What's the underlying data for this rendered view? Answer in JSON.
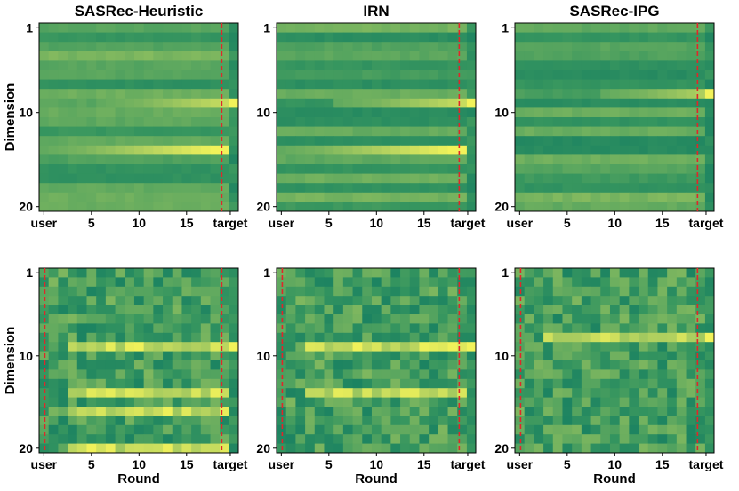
{
  "chart_data": {
    "type": "heatmap",
    "layout": "2 rows x 3 columns",
    "colormap": "summer (dark green to yellow)",
    "colors": {
      "low": "#0f7a62",
      "mid": "#4fa060",
      "high": "#f2f25a",
      "marker_line": "#e0262a"
    },
    "ylabel": "Dimension",
    "xlabel": "Round",
    "y_ticks": [
      {
        "value": 1,
        "label": "1"
      },
      {
        "value": 10,
        "label": "10"
      },
      {
        "value": 20,
        "label": "20"
      }
    ],
    "x_ticks": [
      {
        "value": 0,
        "label": "user"
      },
      {
        "value": 5,
        "label": "5"
      },
      {
        "value": 10,
        "label": "10"
      },
      {
        "value": 15,
        "label": "15"
      },
      {
        "value": 19,
        "label": "target"
      }
    ],
    "marker_lines_note": "dashed red vertical lines separate user / target columns",
    "panels": [
      {
        "row": 1,
        "title": "SASRec-Heuristic",
        "columns": 20,
        "dims": 20,
        "style": "smooth",
        "highlight_dims": [
          9,
          14
        ],
        "marker_lines_at": [
          18.6
        ]
      },
      {
        "row": 1,
        "title": "IRN",
        "columns": 20,
        "dims": 20,
        "style": "smooth",
        "highlight_dims": [
          9,
          14
        ],
        "marker_lines_at": [
          18.6
        ]
      },
      {
        "row": 1,
        "title": "SASRec-IPG",
        "columns": 20,
        "dims": 20,
        "style": "smooth",
        "highlight_dims": [
          8
        ],
        "marker_lines_at": [
          18.6
        ]
      },
      {
        "row": 2,
        "title": "",
        "columns": 20,
        "dims": 20,
        "style": "noisy",
        "highlight_dims": [
          9,
          14,
          16,
          20
        ],
        "marker_lines_at": [
          0.6,
          18.6
        ]
      },
      {
        "row": 2,
        "title": "",
        "columns": 20,
        "dims": 20,
        "style": "noisy",
        "highlight_dims": [
          9,
          14
        ],
        "marker_lines_at": [
          0.6,
          18.6
        ]
      },
      {
        "row": 2,
        "title": "",
        "columns": 20,
        "dims": 20,
        "style": "noisy",
        "highlight_dims": [
          8
        ],
        "marker_lines_at": [
          0.6,
          18.6
        ]
      }
    ]
  }
}
